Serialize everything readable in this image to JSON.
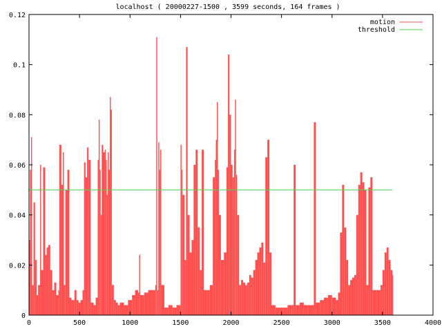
{
  "chart_data": {
    "type": "area",
    "title": "localhost ( 20000227-1500 , 3599 seconds, 164 frames )",
    "xlabel": "",
    "ylabel": "",
    "xlim": [
      0,
      4000
    ],
    "ylim": [
      0,
      0.12
    ],
    "x_ticks": [
      "0",
      "500",
      "1000",
      "1500",
      "2000",
      "2500",
      "3000",
      "3500",
      "4000"
    ],
    "y_ticks": [
      "0",
      "0.02",
      "0.04",
      "0.06",
      "0.08",
      "0.1",
      "0.12"
    ],
    "grid": false,
    "legend_position": "top-right",
    "colors": {
      "motion": "#ff5050",
      "threshold": "#50d050",
      "axis": "#000000"
    },
    "series": [
      {
        "name": "motion",
        "style": "impulses",
        "points": [
          [
            0,
            0.03
          ],
          [
            10,
            0.058
          ],
          [
            20,
            0.071
          ],
          [
            30,
            0.012
          ],
          [
            45,
            0.045
          ],
          [
            60,
            0.022
          ],
          [
            75,
            0.008
          ],
          [
            90,
            0.012
          ],
          [
            110,
            0.06
          ],
          [
            120,
            0.018
          ],
          [
            140,
            0.059
          ],
          [
            160,
            0.024
          ],
          [
            175,
            0.027
          ],
          [
            190,
            0.028
          ],
          [
            210,
            0.018
          ],
          [
            230,
            0.01
          ],
          [
            250,
            0.013
          ],
          [
            270,
            0.008
          ],
          [
            290,
            0.01
          ],
          [
            300,
            0.068
          ],
          [
            320,
            0.052
          ],
          [
            335,
            0.065
          ],
          [
            345,
            0.012
          ],
          [
            360,
            0.05
          ],
          [
            380,
            0.058
          ],
          [
            400,
            0.007
          ],
          [
            420,
            0.006
          ],
          [
            450,
            0.01
          ],
          [
            470,
            0.006
          ],
          [
            490,
            0.005
          ],
          [
            510,
            0.006
          ],
          [
            530,
            0.01
          ],
          [
            545,
            0.061
          ],
          [
            560,
            0.055
          ],
          [
            575,
            0.067
          ],
          [
            590,
            0.062
          ],
          [
            610,
            0.005
          ],
          [
            640,
            0.004
          ],
          [
            660,
            0.007
          ],
          [
            680,
            0.062
          ],
          [
            690,
            0.078
          ],
          [
            700,
            0.058
          ],
          [
            710,
            0.04
          ],
          [
            720,
            0.068
          ],
          [
            735,
            0.065
          ],
          [
            750,
            0.066
          ],
          [
            760,
            0.062
          ],
          [
            770,
            0.048
          ],
          [
            780,
            0.065
          ],
          [
            790,
            0.058
          ],
          [
            800,
            0.087
          ],
          [
            810,
            0.082
          ],
          [
            820,
            0.012
          ],
          [
            840,
            0.006
          ],
          [
            860,
            0.005
          ],
          [
            880,
            0.004
          ],
          [
            900,
            0.005
          ],
          [
            940,
            0.004
          ],
          [
            980,
            0.006
          ],
          [
            1020,
            0.008
          ],
          [
            1050,
            0.01
          ],
          [
            1080,
            0.009
          ],
          [
            1090,
            0.024
          ],
          [
            1100,
            0.008
          ],
          [
            1140,
            0.009
          ],
          [
            1180,
            0.01
          ],
          [
            1220,
            0.01
          ],
          [
            1250,
            0.012
          ],
          [
            1260,
            0.111
          ],
          [
            1270,
            0.01
          ],
          [
            1280,
            0.069
          ],
          [
            1290,
            0.058
          ],
          [
            1300,
            0.066
          ],
          [
            1310,
            0.012
          ],
          [
            1340,
            0.003
          ],
          [
            1380,
            0.004
          ],
          [
            1420,
            0.003
          ],
          [
            1460,
            0.004
          ],
          [
            1490,
            0.004
          ],
          [
            1500,
            0.068
          ],
          [
            1510,
            0.058
          ],
          [
            1520,
            0.048
          ],
          [
            1540,
            0.022
          ],
          [
            1555,
            0.107
          ],
          [
            1570,
            0.04
          ],
          [
            1590,
            0.025
          ],
          [
            1610,
            0.03
          ],
          [
            1630,
            0.06
          ],
          [
            1650,
            0.066
          ],
          [
            1670,
            0.035
          ],
          [
            1690,
            0.018
          ],
          [
            1710,
            0.066
          ],
          [
            1730,
            0.01
          ],
          [
            1760,
            0.01
          ],
          [
            1790,
            0.012
          ],
          [
            1820,
            0.055
          ],
          [
            1840,
            0.062
          ],
          [
            1850,
            0.07
          ],
          [
            1860,
            0.085
          ],
          [
            1870,
            0.058
          ],
          [
            1880,
            0.04
          ],
          [
            1900,
            0.022
          ],
          [
            1930,
            0.025
          ],
          [
            1955,
            0.059
          ],
          [
            1970,
            0.104
          ],
          [
            1985,
            0.08
          ],
          [
            2000,
            0.06
          ],
          [
            2015,
            0.055
          ],
          [
            2030,
            0.066
          ],
          [
            2040,
            0.086
          ],
          [
            2050,
            0.056
          ],
          [
            2060,
            0.04
          ],
          [
            2080,
            0.012
          ],
          [
            2100,
            0.014
          ],
          [
            2120,
            0.013
          ],
          [
            2140,
            0.012
          ],
          [
            2160,
            0.013
          ],
          [
            2180,
            0.016
          ],
          [
            2200,
            0.015
          ],
          [
            2220,
            0.018
          ],
          [
            2240,
            0.022
          ],
          [
            2260,
            0.025
          ],
          [
            2280,
            0.027
          ],
          [
            2300,
            0.029
          ],
          [
            2320,
            0.021
          ],
          [
            2340,
            0.063
          ],
          [
            2360,
            0.07
          ],
          [
            2380,
            0.025
          ],
          [
            2400,
            0.004
          ],
          [
            2440,
            0.003
          ],
          [
            2480,
            0.003
          ],
          [
            2520,
            0.003
          ],
          [
            2560,
            0.004
          ],
          [
            2600,
            0.004
          ],
          [
            2620,
            0.06
          ],
          [
            2640,
            0.004
          ],
          [
            2680,
            0.005
          ],
          [
            2720,
            0.004
          ],
          [
            2760,
            0.004
          ],
          [
            2800,
            0.004
          ],
          [
            2820,
            0.077
          ],
          [
            2840,
            0.005
          ],
          [
            2880,
            0.006
          ],
          [
            2920,
            0.007
          ],
          [
            2960,
            0.008
          ],
          [
            3000,
            0.007
          ],
          [
            3040,
            0.006
          ],
          [
            3060,
            0.009
          ],
          [
            3080,
            0.033
          ],
          [
            3100,
            0.052
          ],
          [
            3120,
            0.035
          ],
          [
            3140,
            0.022
          ],
          [
            3160,
            0.012
          ],
          [
            3180,
            0.014
          ],
          [
            3200,
            0.015
          ],
          [
            3220,
            0.016
          ],
          [
            3240,
            0.04
          ],
          [
            3260,
            0.052
          ],
          [
            3280,
            0.057
          ],
          [
            3300,
            0.053
          ],
          [
            3320,
            0.05
          ],
          [
            3340,
            0.012
          ],
          [
            3360,
            0.051
          ],
          [
            3380,
            0.055
          ],
          [
            3400,
            0.01
          ],
          [
            3440,
            0.01
          ],
          [
            3480,
            0.012
          ],
          [
            3500,
            0.018
          ],
          [
            3520,
            0.025
          ],
          [
            3540,
            0.027
          ],
          [
            3560,
            0.022
          ],
          [
            3580,
            0.018
          ],
          [
            3599,
            0.016
          ]
        ]
      },
      {
        "name": "threshold",
        "style": "line",
        "points": [
          [
            0,
            0.05
          ],
          [
            3599,
            0.05
          ]
        ]
      }
    ]
  }
}
